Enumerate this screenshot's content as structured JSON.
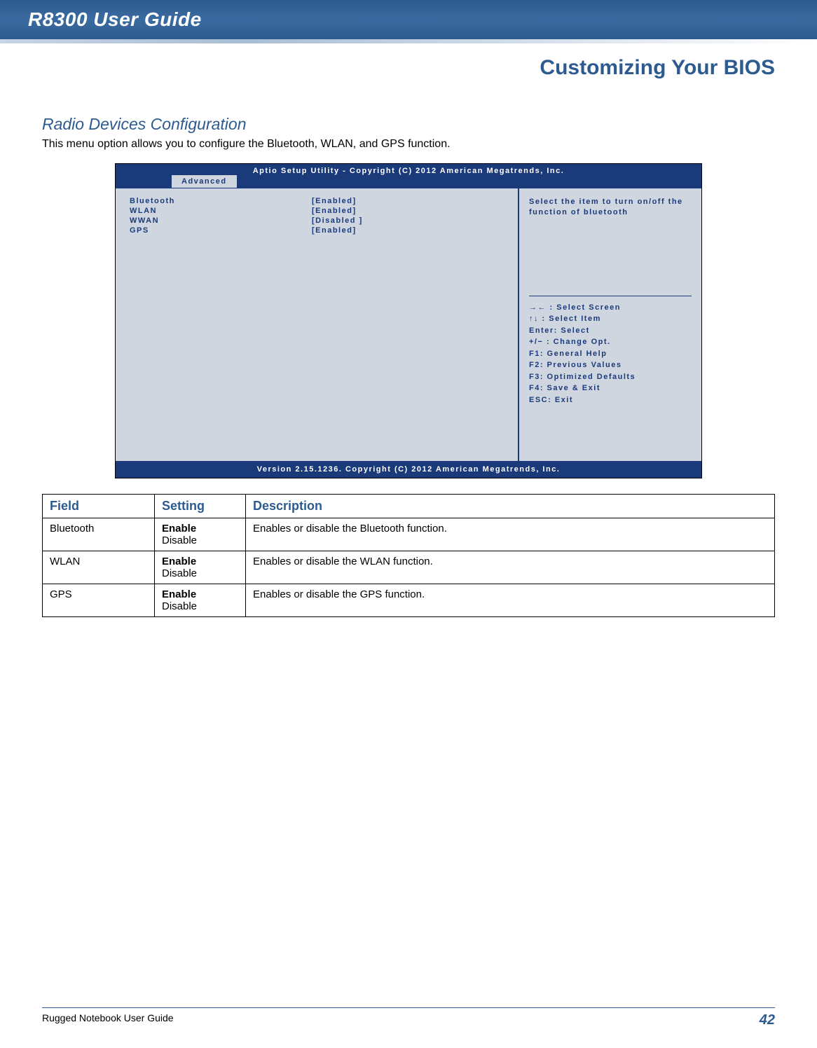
{
  "header": {
    "guide_title": "R8300 User Guide",
    "chapter_title": "Customizing Your BIOS"
  },
  "section": {
    "title": "Radio Devices Configuration",
    "intro": "This menu option allows you to configure the Bluetooth, WLAN, and GPS function."
  },
  "bios": {
    "top_line": "Aptio Setup Utility - Copyright (C) 2012 American Megatrends, Inc.",
    "tab": "Advanced",
    "items": [
      {
        "label": "Bluetooth",
        "value": "[Enabled]"
      },
      {
        "label": "WLAN",
        "value": "[Enabled]"
      },
      {
        "label": "WWAN",
        "value": "[Disabled ]"
      },
      {
        "label": "GPS",
        "value": "[Enabled]"
      }
    ],
    "help_text": "Select the item to turn on/off the function of bluetooth",
    "keys": [
      "→← : Select Screen",
      "↑↓ : Select Item",
      "Enter: Select",
      "+/− : Change Opt.",
      "F1: General Help",
      "F2: Previous Values",
      "F3: Optimized Defaults",
      "F4: Save & Exit",
      "ESC: Exit"
    ],
    "bottom_line": "Version 2.15.1236. Copyright (C) 2012 American Megatrends, Inc.",
    "colors": {
      "frame_bg": "#1a3a7a",
      "panel_bg": "#d0d6e0",
      "text": "#1a3a7a"
    }
  },
  "table": {
    "headers": {
      "field": "Field",
      "setting": "Setting",
      "description": "Description"
    },
    "rows": [
      {
        "field": "Bluetooth",
        "setting_bold": "Enable",
        "setting_plain": "Disable",
        "description": "Enables or disable the Bluetooth function."
      },
      {
        "field": "WLAN",
        "setting_bold": "Enable",
        "setting_plain": "Disable",
        "description": "Enables or disable the WLAN function."
      },
      {
        "field": "GPS",
        "setting_bold": "Enable",
        "setting_plain": "Disable",
        "description": "Enables or disable the GPS function."
      }
    ]
  },
  "footer": {
    "left": "Rugged Notebook User Guide",
    "page": "42"
  }
}
